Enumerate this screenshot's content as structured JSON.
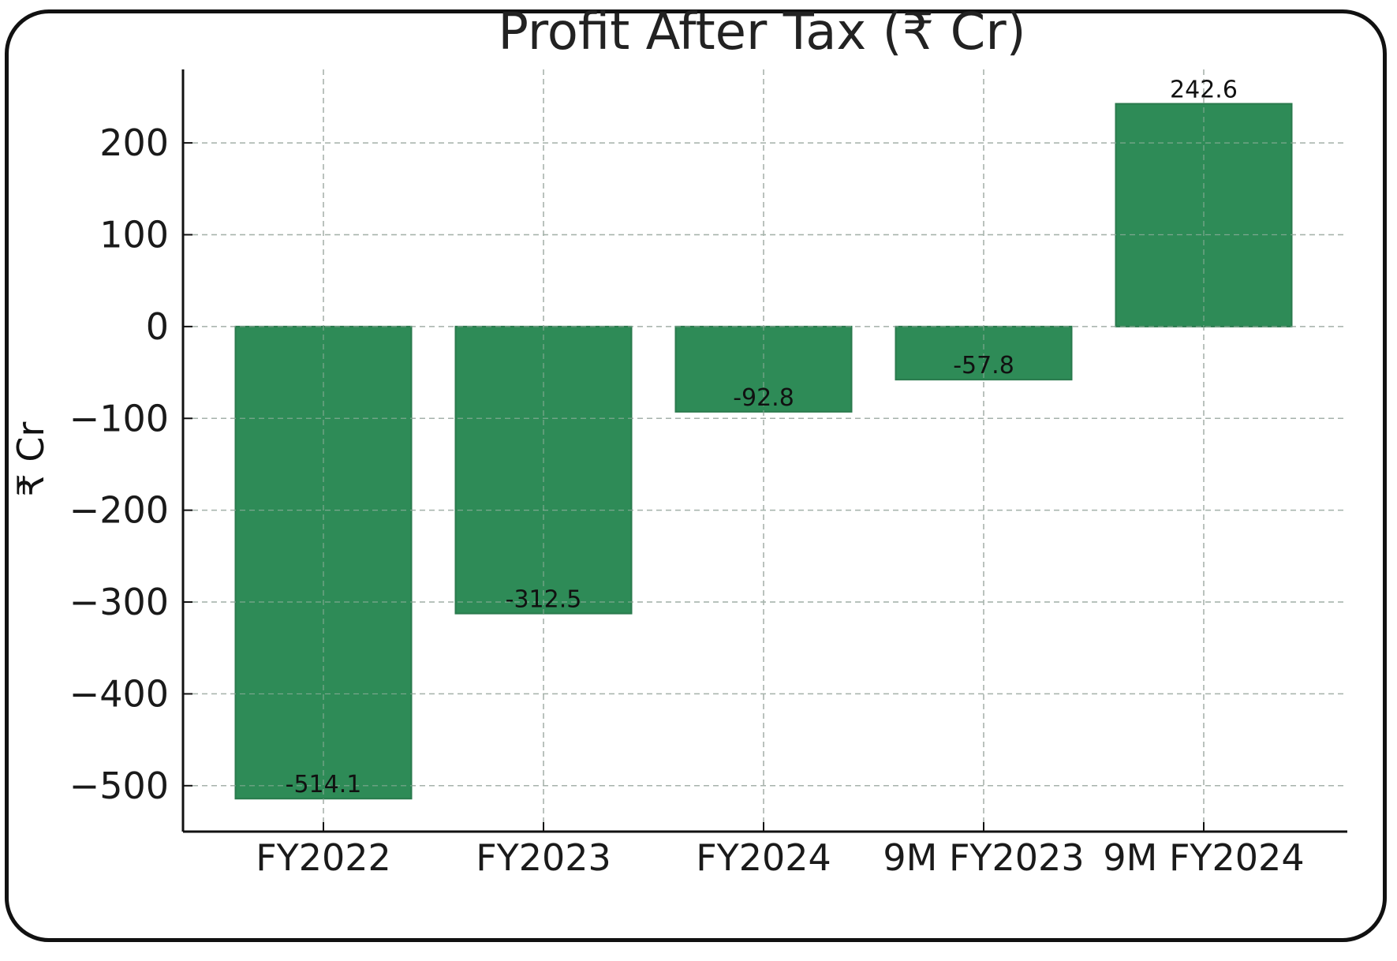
{
  "chart_data": {
    "type": "bar",
    "title": "Profit After Tax (₹ Cr)",
    "xlabel": "",
    "ylabel": "₹ Cr",
    "categories": [
      "FY2022",
      "FY2023",
      "FY2024",
      "9M FY2023",
      "9M FY2024"
    ],
    "values": [
      -514.1,
      -312.5,
      -92.8,
      -57.8,
      242.6
    ],
    "value_labels": [
      "-514.1",
      "-312.5",
      "-92.8",
      "-57.8",
      "242.6"
    ],
    "ylim": [
      -550,
      280
    ],
    "yticks": [
      200,
      100,
      0,
      -100,
      -200,
      -300,
      -400,
      -500
    ],
    "ytick_labels": [
      "200",
      "100",
      "0",
      "−100",
      "−200",
      "−300",
      "−400",
      "−500"
    ],
    "grid": true,
    "bar_color": "#2e8b57"
  }
}
